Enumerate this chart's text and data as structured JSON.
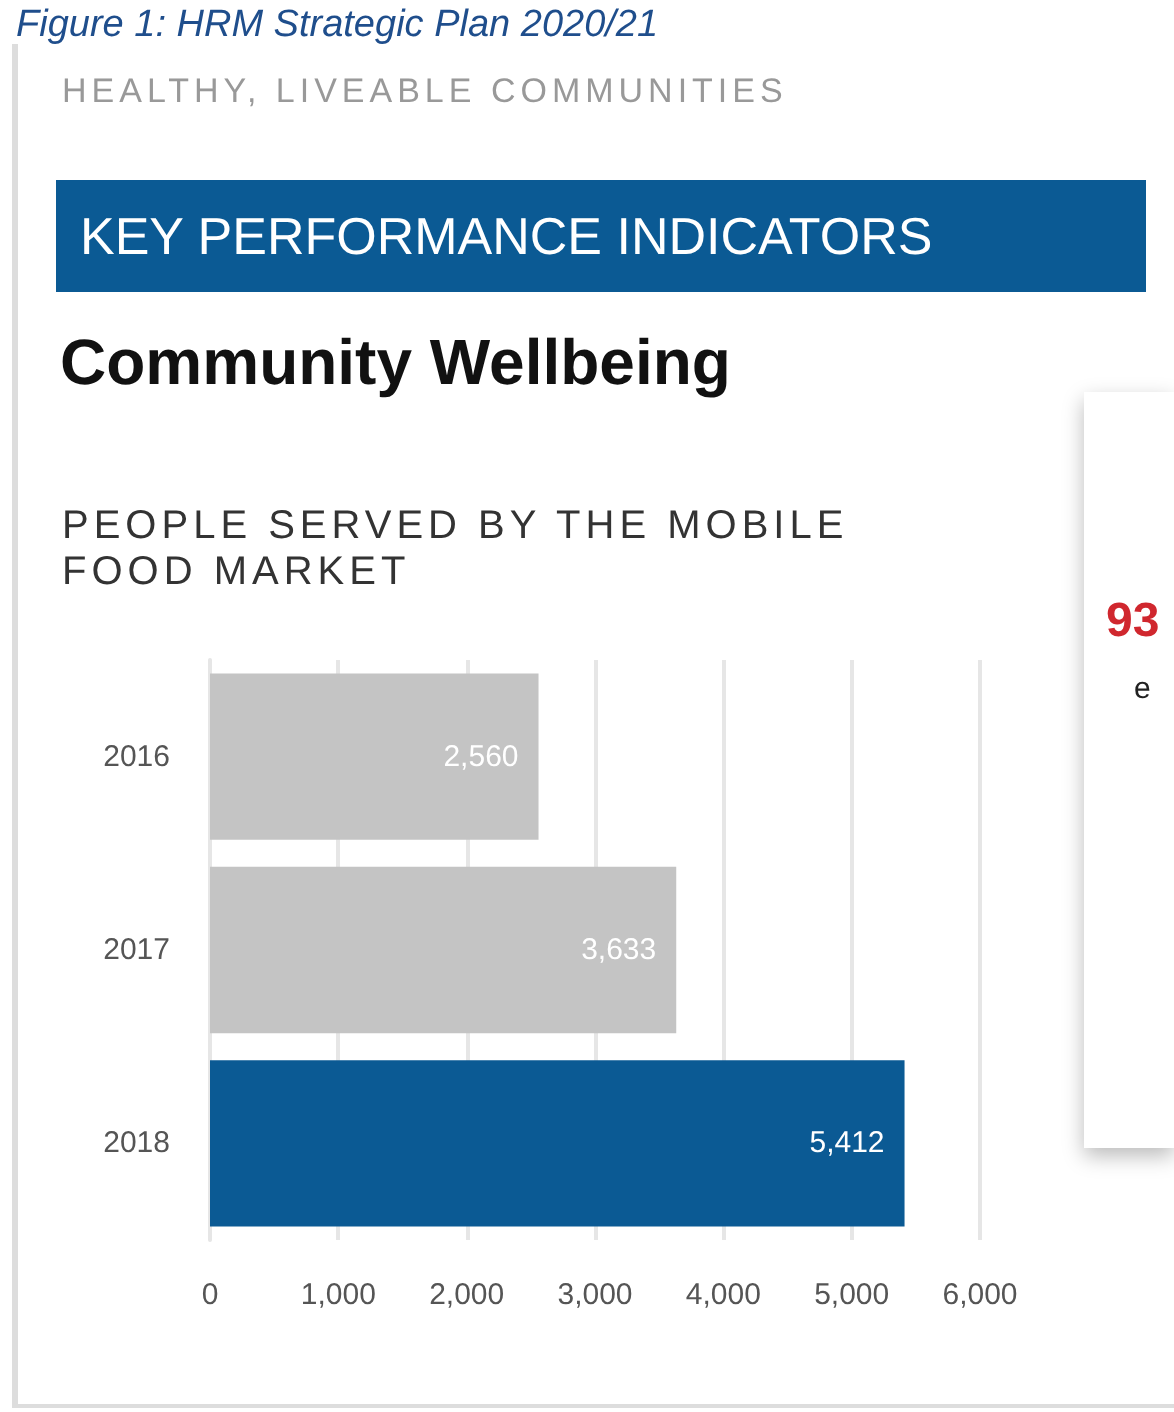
{
  "chart_data": {
    "type": "bar",
    "orientation": "horizontal",
    "title": "Figure 1: HRM Strategic Plan 2020/21",
    "subtitle": "PEOPLE SERVED BY THE MOBILE FOOD MARKET",
    "annotations": [
      "HEALTHY, LIVEABLE COMMUNITIES",
      "KEY PERFORMANCE INDICATORS",
      "Community Wellbeing",
      "93",
      "e"
    ],
    "categories": [
      "2016",
      "2017",
      "2018"
    ],
    "values": [
      2560,
      3633,
      5412
    ],
    "colors": [
      "#c4c4c4",
      "#c4c4c4",
      "#0b5a94"
    ],
    "value_labels": [
      "2,560",
      "3,633",
      "5,412"
    ],
    "xlim": [
      0,
      6000
    ],
    "xticks": [
      0,
      {
        "value": 1000,
        "label": "1,000"
      },
      {
        "value": 2000,
        "label": "2,000"
      },
      {
        "value": 3000,
        "label": "3,000"
      },
      {
        "value": 4000,
        "label": "4,000"
      },
      {
        "value": 5000,
        "label": "5,000"
      },
      {
        "value": 6000,
        "label": "6,000"
      }
    ],
    "grid": "x"
  }
}
